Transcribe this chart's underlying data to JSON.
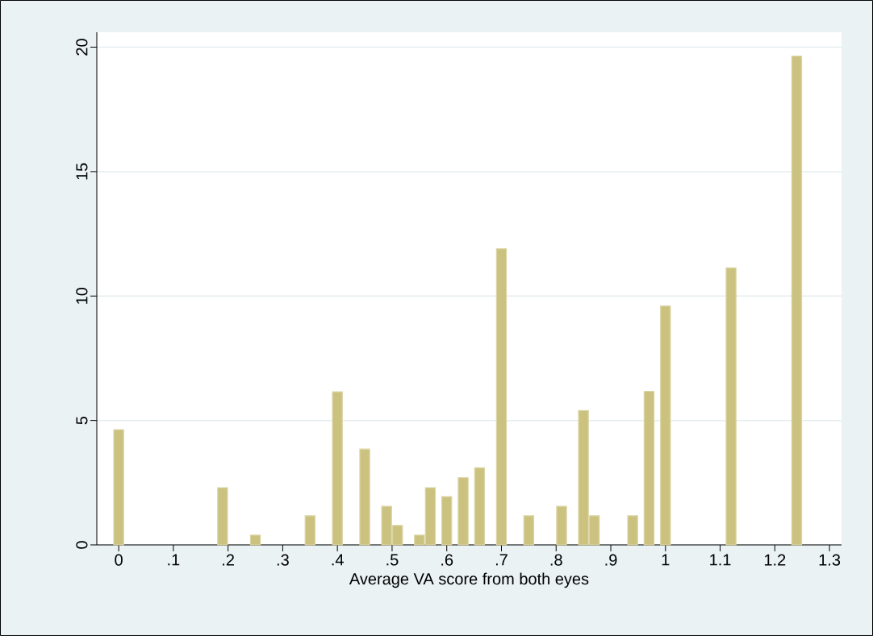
{
  "chart_data": {
    "type": "bar",
    "xlabel": "Average VA score from both eyes",
    "x": [
      0,
      0.19,
      0.25,
      0.35,
      0.4,
      0.45,
      0.49,
      0.51,
      0.55,
      0.57,
      0.6,
      0.63,
      0.66,
      0.7,
      0.75,
      0.81,
      0.85,
      0.87,
      0.94,
      0.97,
      1.0,
      1.12,
      1.24
    ],
    "values": [
      4.63,
      2.3,
      0.39,
      1.17,
      6.15,
      3.85,
      1.55,
      0.78,
      0.39,
      2.3,
      1.94,
      2.7,
      3.1,
      11.9,
      1.17,
      1.55,
      5.4,
      1.17,
      1.17,
      6.17,
      9.6,
      11.13,
      19.64
    ],
    "color": "#cbc27f",
    "xlim": [
      -0.04,
      1.322
    ],
    "ylim": [
      0,
      20.6
    ],
    "xticks": [
      0,
      {
        "value": 0.1,
        "label": ".1"
      },
      {
        "value": 0.2,
        "label": ".2"
      },
      {
        "value": 0.3,
        "label": ".3"
      },
      {
        "value": 0.4,
        "label": ".4"
      },
      {
        "value": 0.5,
        "label": ".5"
      },
      {
        "value": 0.6,
        "label": ".6"
      },
      {
        "value": 0.7,
        "label": ".7"
      },
      {
        "value": 0.8,
        "label": ".8"
      },
      {
        "value": 0.9,
        "label": ".9"
      },
      1,
      1.1,
      1.2,
      1.3
    ],
    "yticks": [
      0,
      5,
      10,
      15,
      20
    ],
    "grid": "y"
  }
}
